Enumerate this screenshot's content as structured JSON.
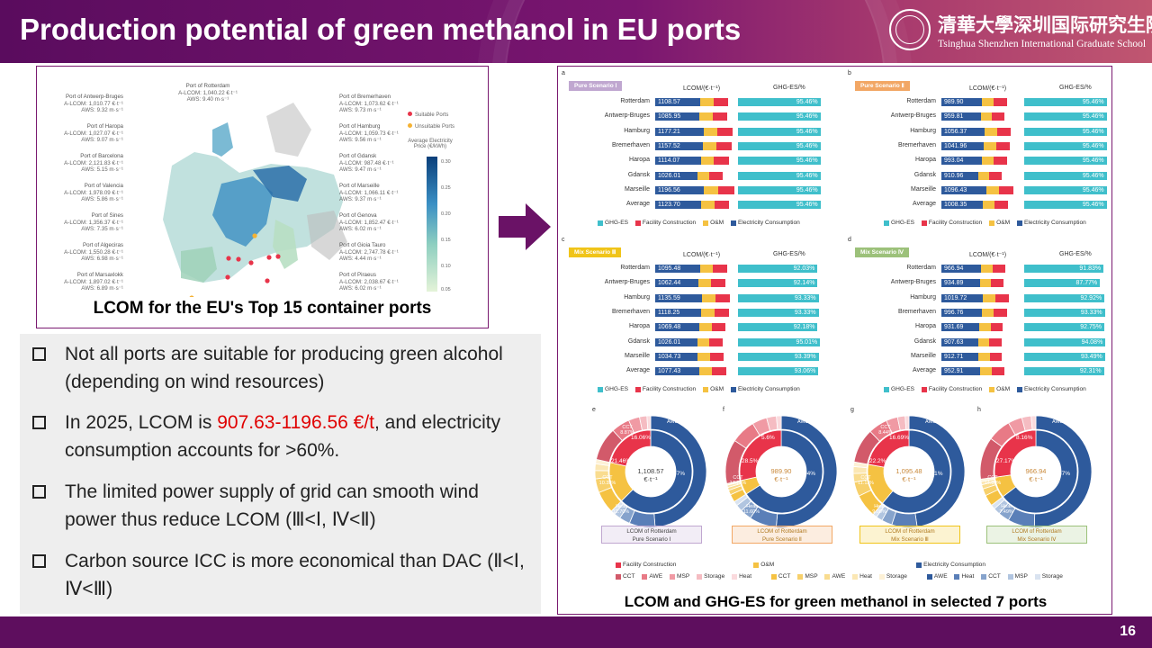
{
  "header": {
    "title": "Production potential of green methanol in EU ports",
    "university_cn": "清華大學深圳国际研究生院",
    "university_en": "Tsinghua Shenzhen International Graduate School"
  },
  "page_number": "16",
  "map_panel": {
    "caption": "LCOM for the EU's Top 15 container ports",
    "legend": {
      "suitable": "Suitable Ports",
      "unsuitable": "Unsuitable Ports",
      "colorbar_title": "Average Electricity Price (€/kWh)",
      "ticks": [
        "0.30",
        "0.25",
        "0.20",
        "0.15",
        "0.10",
        "0.05"
      ]
    },
    "ports_left": [
      {
        "name": "Port of Antwerp-Bruges",
        "lcom": "A-LCOM: 1,010.77 €·t⁻¹",
        "aws": "AWS: 9.32 m·s⁻¹"
      },
      {
        "name": "Port of Haropa",
        "lcom": "A-LCOM: 1,027.07 €·t⁻¹",
        "aws": "AWS: 9.07 m·s⁻¹"
      },
      {
        "name": "Port of Barcelona",
        "lcom": "A-LCOM: 2,121.83 €·t⁻¹",
        "aws": "AWS: 5.15 m·s⁻¹"
      },
      {
        "name": "Port of Valencia",
        "lcom": "A-LCOM: 1,978.09 €·t⁻¹",
        "aws": "AWS: 5.86 m·s⁻¹"
      },
      {
        "name": "Port of Sines",
        "lcom": "A-LCOM: 1,356.37 €·t⁻¹",
        "aws": "AWS: 7.35 m·s⁻¹"
      },
      {
        "name": "Port of Algeciras",
        "lcom": "A-LCOM: 1,550.28 €·t⁻¹",
        "aws": "AWS: 6.98 m·s⁻¹"
      },
      {
        "name": "Port of Marsaxlokk",
        "lcom": "A-LCOM: 1,897.02 €·t⁻¹",
        "aws": "AWS: 6.89 m·s⁻¹"
      }
    ],
    "port_top": {
      "name": "Port of Rotterdam",
      "lcom": "A-LCOM: 1,040.22 €·t⁻¹",
      "aws": "AWS: 9.40 m·s⁻¹"
    },
    "ports_right": [
      {
        "name": "Port of Bremerhaven",
        "lcom": "A-LCOM: 1,073.62 €·t⁻¹",
        "aws": "AWS: 9.73 m·s⁻¹"
      },
      {
        "name": "Port of Hamburg",
        "lcom": "A-LCOM: 1,059.73 €·t⁻¹",
        "aws": "AWS: 9.56 m·s⁻¹"
      },
      {
        "name": "Port of Gdansk",
        "lcom": "A-LCOM: 987.48 €·t⁻¹",
        "aws": "AWS: 9.47 m·s⁻¹"
      },
      {
        "name": "Port of Marseille",
        "lcom": "A-LCOM: 1,066.11 €·t⁻¹",
        "aws": "AWS: 9.37 m·s⁻¹"
      },
      {
        "name": "Port of Genova",
        "lcom": "A-LCOM: 1,852.47 €·t⁻¹",
        "aws": "AWS: 6.02 m·s⁻¹"
      },
      {
        "name": "Port of Gioia Tauro",
        "lcom": "A-LCOM: 2,747.78 €·t⁻¹",
        "aws": "AWS: 4.44 m·s⁻¹"
      },
      {
        "name": "Port of Piraeus",
        "lcom": "A-LCOM: 2,038.67 €·t⁻¹",
        "aws": "AWS: 6.02 m·s⁻¹"
      }
    ]
  },
  "bullets": [
    {
      "text": "Not all ports are suitable for producing green alcohol (depending on wind resources)"
    },
    {
      "pre": "In 2025, LCOM is ",
      "highlight": "907.63-1196.56 €/t",
      "post": ", and electricity consumption accounts for >60%."
    },
    {
      "text": "The limited power supply of grid can smooth wind power thus reduce LCOM (Ⅲ<Ⅰ, Ⅳ<Ⅱ)"
    },
    {
      "text": "Carbon source ICC is more economical than DAC (Ⅱ<Ⅰ, Ⅳ<Ⅲ)"
    }
  ],
  "right_caption": "LCOM and GHG-ES for green methanol in selected 7 ports",
  "colors": {
    "electricity": "#2e5a9c",
    "facility": "#e8344a",
    "om": "#f5c242",
    "ghg": "#3fbfcb",
    "brand": "#6a1266"
  },
  "chart_data": [
    {
      "type": "bar",
      "letter": "a",
      "scenario": "Pure Scenario Ⅰ",
      "tag_color": "#c0a7d0",
      "categories": [
        "Rotterdam",
        "Antwerp-Bruges",
        "Hamburg",
        "Bremerhaven",
        "Haropa",
        "Gdansk",
        "Marseille",
        "Average"
      ],
      "lcom": [
        "1108.57",
        "1085.95",
        "1177.21",
        "1157.52",
        "1114.07",
        "1026.01",
        "1196.56",
        "1123.70"
      ],
      "ghg": [
        "95.46%",
        "95.46%",
        "95.46%",
        "95.46%",
        "95.46%",
        "95.46%",
        "95.46%",
        "95.46%"
      ],
      "col1": "LCOM/(€·t⁻¹)",
      "col2": "GHG-ES/%",
      "legend": [
        "GHG-ES",
        "Facility Construction",
        "O&M",
        "Electricity Consumption"
      ]
    },
    {
      "type": "bar",
      "letter": "b",
      "scenario": "Pure Scenario Ⅱ",
      "tag_color": "#f2a765",
      "categories": [
        "Rotterdam",
        "Antwerp-Bruges",
        "Hamburg",
        "Bremerhaven",
        "Haropa",
        "Gdansk",
        "Marseille",
        "Average"
      ],
      "lcom": [
        "989.90",
        "959.81",
        "1056.37",
        "1041.96",
        "993.04",
        "910.96",
        "1096.43",
        "1008.35"
      ],
      "ghg": [
        "95.46%",
        "95.46%",
        "95.46%",
        "95.46%",
        "95.46%",
        "95.46%",
        "95.46%",
        "95.46%"
      ],
      "col1": "LCOM/(€·t⁻¹)",
      "col2": "GHG-ES/%",
      "legend": [
        "GHG-ES",
        "Facility Construction",
        "O&M",
        "Electricity Consumption"
      ]
    },
    {
      "type": "bar",
      "letter": "c",
      "scenario": "Mix Scenario Ⅲ",
      "tag_color": "#f0c419",
      "categories": [
        "Rotterdam",
        "Antwerp-Bruges",
        "Hamburg",
        "Bremerhaven",
        "Haropa",
        "Gdansk",
        "Marseille",
        "Average"
      ],
      "lcom": [
        "1095.48",
        "1062.44",
        "1135.59",
        "1118.25",
        "1069.48",
        "1026.01",
        "1034.73",
        "1077.43"
      ],
      "ghg": [
        "92.03%",
        "92.14%",
        "93.33%",
        "93.33%",
        "92.18%",
        "95.01%",
        "93.39%",
        "93.06%"
      ],
      "col1": "LCOM/(€·t⁻¹)",
      "col2": "GHG-ES/%",
      "legend": [
        "GHG-ES",
        "Facility Construction",
        "O&M",
        "Electricity Consumption"
      ]
    },
    {
      "type": "bar",
      "letter": "d",
      "scenario": "Mix Scenario Ⅳ",
      "tag_color": "#9cc17a",
      "categories": [
        "Rotterdam",
        "Antwerp-Bruges",
        "Hamburg",
        "Bremerhaven",
        "Haropa",
        "Gdansk",
        "Marseille",
        "Average"
      ],
      "lcom": [
        "966.94",
        "934.89",
        "1019.72",
        "996.76",
        "931.69",
        "907.63",
        "912.71",
        "952.91"
      ],
      "ghg": [
        "91.83%",
        "87.77%",
        "92.92%",
        "93.33%",
        "92.75%",
        "94.08%",
        "93.49%",
        "92.31%"
      ],
      "col1": "LCOM/(€·t⁻¹)",
      "col2": "GHG-ES/%",
      "legend": [
        "GHG-ES",
        "Facility Construction",
        "O&M",
        "Electricity Consumption"
      ]
    },
    {
      "type": "pie",
      "letter": "e",
      "center": "1,108.57",
      "unit": "€·t⁻¹",
      "caption1": "LCOM of Rotterdam",
      "caption2": "Pure Scenario Ⅰ",
      "tag_color": "#c0a7d0",
      "outer": {
        "awe": "AWE 47.35%",
        "cct": "CCT 8.87%"
      },
      "inner": {
        "elec": "62.47%",
        "fc": "21.46%",
        "om": "16.06%"
      },
      "labels": {
        "cct": "CCT 10.35%",
        "heat": "Heat 12.70%"
      }
    },
    {
      "type": "pie",
      "letter": "f",
      "center": "989.90",
      "unit": "€·t⁻¹",
      "caption1": "LCOM of Rotterdam",
      "caption2": "Pure Scenario Ⅱ",
      "tag_color": "#f2a765",
      "outer": {
        "awe": "AWE 53.47%"
      },
      "inner": {
        "elec": "65.94%",
        "fc": "28.5%",
        "om": "5.6%"
      },
      "labels": {
        "cct": "CCT 14.26%",
        "heat": "Heat 11.60%"
      }
    },
    {
      "type": "pie",
      "letter": "g",
      "center": "1,095.48",
      "unit": "€·t⁻¹",
      "caption1": "LCOM of Rotterdam",
      "caption2": "Mix Scenario Ⅲ",
      "tag_color": "#f0c419",
      "outer": {
        "awe": "AWE 49.87%",
        "cct": "CCT 8.44%"
      },
      "inner": {
        "elec": "61.11%",
        "fc": "22.2%",
        "om": "16.69%"
      },
      "labels": {
        "cct": "CCT 11.11%",
        "heat": "Heat 9.00%"
      }
    },
    {
      "type": "pie",
      "letter": "h",
      "center": "966.94",
      "unit": "€·t⁻¹",
      "caption1": "LCOM of Rotterdam",
      "caption2": "Mix Scenario Ⅳ",
      "tag_color": "#9cc17a",
      "outer": {
        "awe": "AWE 56.31%"
      },
      "inner": {
        "elec": "64.67%",
        "fc": "27.17%",
        "om": "8.16%"
      },
      "labels": {
        "cct": "CCT 14.80%",
        "heat": "Heat 7.49%"
      }
    }
  ],
  "bottom_legend": {
    "row1": [
      "Facility Construction",
      "O&M",
      "Electricity Consumption"
    ],
    "row2a": [
      "CCT",
      "AWE",
      "MSP",
      "Storage",
      "Heat"
    ],
    "row2b": [
      "CCT",
      "MSP",
      "AWE",
      "Heat",
      "Storage"
    ],
    "row2c": [
      "AWE",
      "Heat",
      "CCT",
      "MSP",
      "Storage"
    ]
  }
}
